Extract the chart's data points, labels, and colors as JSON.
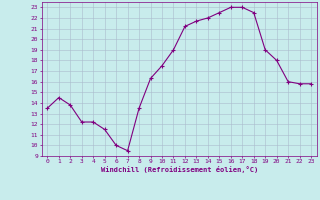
{
  "x": [
    0,
    1,
    2,
    3,
    4,
    5,
    6,
    7,
    8,
    9,
    10,
    11,
    12,
    13,
    14,
    15,
    16,
    17,
    18,
    19,
    20,
    21,
    22,
    23
  ],
  "y": [
    13.5,
    14.5,
    13.8,
    12.2,
    12.2,
    11.5,
    10.0,
    9.5,
    13.5,
    16.3,
    17.5,
    19.0,
    21.2,
    21.7,
    22.0,
    22.5,
    23.0,
    23.0,
    22.5,
    19.0,
    18.0,
    16.0,
    15.8,
    15.8
  ],
  "line_color": "#800080",
  "marker": "+",
  "marker_size": 3,
  "bg_color": "#c8ecec",
  "grid_color": "#aabbcc",
  "xlabel": "Windchill (Refroidissement éolien,°C)",
  "xlabel_color": "#800080",
  "tick_color": "#800080",
  "ylim": [
    9,
    23.5
  ],
  "xlim": [
    -0.5,
    23.5
  ],
  "yticks": [
    9,
    10,
    11,
    12,
    13,
    14,
    15,
    16,
    17,
    18,
    19,
    20,
    21,
    22,
    23
  ],
  "xticks": [
    0,
    1,
    2,
    3,
    4,
    5,
    6,
    7,
    8,
    9,
    10,
    11,
    12,
    13,
    14,
    15,
    16,
    17,
    18,
    19,
    20,
    21,
    22,
    23
  ],
  "figsize": [
    3.2,
    2.0
  ],
  "dpi": 100
}
